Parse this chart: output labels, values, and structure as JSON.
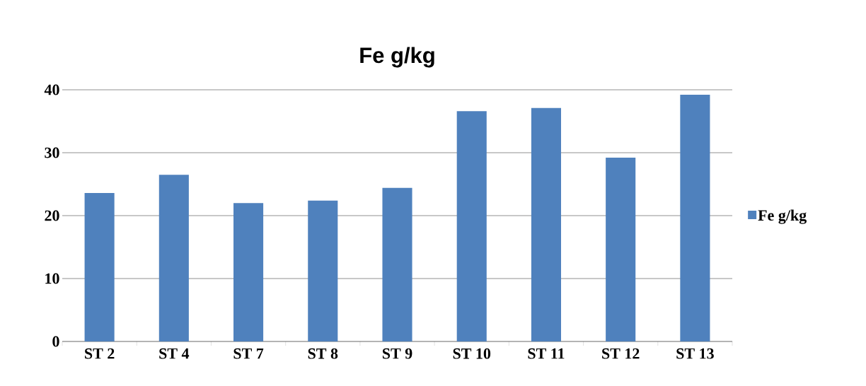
{
  "chart_data": {
    "type": "bar",
    "title": "Fe  g/kg",
    "categories": [
      "ST 2",
      "ST 4",
      "ST 7",
      "ST 8",
      "ST 9",
      "ST 10",
      "ST 11",
      "ST 12",
      "ST 13"
    ],
    "series": [
      {
        "name": "Fe  g/kg",
        "color": "#4f81bd",
        "values": [
          23.6,
          26.5,
          22.0,
          22.4,
          24.4,
          36.6,
          37.1,
          29.2,
          39.2
        ]
      }
    ],
    "ylim": [
      0,
      40
    ],
    "yticks": [
      0,
      10,
      20,
      30,
      40
    ],
    "grid": "y",
    "legend": "right"
  }
}
